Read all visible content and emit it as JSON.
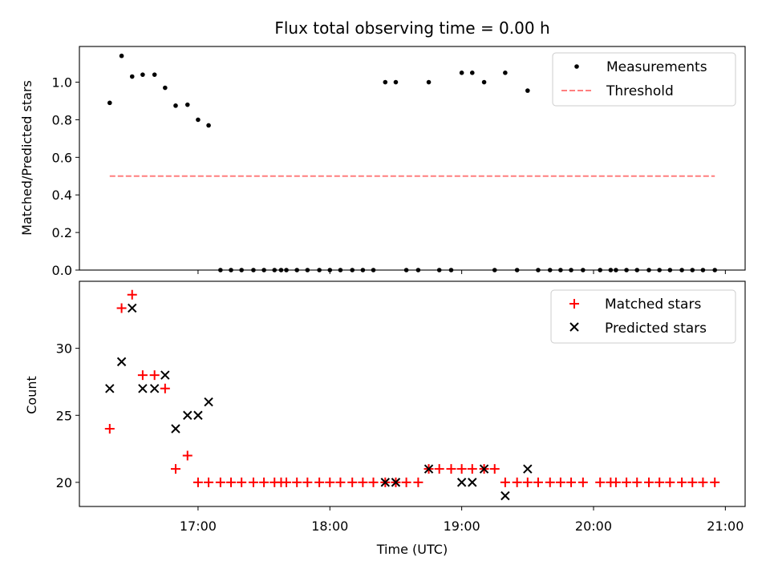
{
  "chart_data": [
    {
      "type": "scatter",
      "title": "Flux total observing time = 0.00 h",
      "xlabel": "",
      "ylabel": "Matched/Predicted stars",
      "ylim": [
        0,
        1.19
      ],
      "xlim_hours": [
        16.1,
        21.15
      ],
      "yticks": [
        {
          "v": 0.0,
          "label": "0.0"
        },
        {
          "v": 0.2,
          "label": "0.2"
        },
        {
          "v": 0.4,
          "label": "0.4"
        },
        {
          "v": 0.6,
          "label": "0.6"
        },
        {
          "v": 0.8,
          "label": "0.8"
        },
        {
          "v": 1.0,
          "label": "1.0"
        }
      ],
      "legend": [
        {
          "label": "Measurements",
          "color": "#000000",
          "marker": "dot"
        },
        {
          "label": "Threshold",
          "color": "#ff7f7f",
          "marker": "dash"
        }
      ],
      "legend_position": "top-right",
      "threshold": {
        "value": 0.5,
        "x_start": 16.33,
        "x_end": 20.92,
        "color": "#ff7f7f"
      },
      "measurements": {
        "x": [
          16.33,
          16.42,
          16.5,
          16.58,
          16.67,
          16.75,
          16.83,
          16.92,
          17.0,
          17.08,
          17.17,
          17.25,
          17.33,
          17.42,
          17.5,
          17.58,
          17.63,
          17.67,
          17.75,
          17.83,
          17.92,
          18.0,
          18.08,
          18.17,
          18.25,
          18.33,
          18.42,
          18.5,
          18.58,
          18.67,
          18.75,
          18.83,
          18.92,
          19.0,
          19.08,
          19.17,
          19.25,
          19.33,
          19.42,
          19.5,
          19.58,
          19.67,
          19.75,
          19.83,
          19.92,
          20.05,
          20.13,
          20.17,
          20.25,
          20.33,
          20.42,
          20.5,
          20.58,
          20.67,
          20.75,
          20.83,
          20.92
        ],
        "y": [
          0.89,
          1.14,
          1.03,
          1.04,
          1.04,
          0.97,
          0.875,
          0.88,
          0.8,
          0.77,
          0,
          0,
          0,
          0,
          0,
          0,
          0,
          0,
          0,
          0,
          0,
          0,
          0,
          0,
          0,
          0,
          1.0,
          1.0,
          0,
          0,
          1.0,
          0,
          0,
          1.05,
          1.05,
          1.0,
          0,
          1.05,
          0,
          0.955,
          0,
          0,
          0,
          0,
          0,
          0,
          0,
          0,
          0,
          0,
          0,
          0,
          0,
          0,
          0,
          0,
          0
        ]
      }
    },
    {
      "type": "scatter",
      "title": "",
      "xlabel": "Time (UTC)",
      "ylabel": "Count",
      "ylim": [
        18.2,
        35.0
      ],
      "xlim_hours": [
        16.1,
        21.15
      ],
      "yticks": [
        {
          "v": 20,
          "label": "20"
        },
        {
          "v": 25,
          "label": "25"
        },
        {
          "v": 30,
          "label": "30"
        }
      ],
      "xticks": [
        {
          "v": 17,
          "label": "17:00"
        },
        {
          "v": 18,
          "label": "18:00"
        },
        {
          "v": 19,
          "label": "19:00"
        },
        {
          "v": 20,
          "label": "20:00"
        },
        {
          "v": 21,
          "label": "21:00"
        }
      ],
      "legend": [
        {
          "label": "Matched stars",
          "color": "#ff0000",
          "marker": "plus"
        },
        {
          "label": "Predicted stars",
          "color": "#000000",
          "marker": "x"
        }
      ],
      "legend_position": "top-right",
      "series": [
        {
          "name": "Matched stars",
          "color": "#ff0000",
          "marker": "plus",
          "x": [
            16.33,
            16.42,
            16.5,
            16.58,
            16.67,
            16.75,
            16.83,
            16.92,
            17.0,
            17.08,
            17.17,
            17.25,
            17.33,
            17.42,
            17.5,
            17.58,
            17.63,
            17.67,
            17.75,
            17.83,
            17.92,
            18.0,
            18.08,
            18.17,
            18.25,
            18.33,
            18.42,
            18.5,
            18.58,
            18.67,
            18.75,
            18.83,
            18.92,
            19.0,
            19.08,
            19.17,
            19.25,
            19.33,
            19.42,
            19.5,
            19.58,
            19.67,
            19.75,
            19.83,
            19.92,
            20.05,
            20.13,
            20.17,
            20.25,
            20.33,
            20.42,
            20.5,
            20.58,
            20.67,
            20.75,
            20.83,
            20.92
          ],
          "y": [
            24,
            33,
            34,
            28,
            28,
            27,
            21,
            22,
            20,
            20,
            20,
            20,
            20,
            20,
            20,
            20,
            20,
            20,
            20,
            20,
            20,
            20,
            20,
            20,
            20,
            20,
            20,
            20,
            20,
            20,
            21,
            21,
            21,
            21,
            21,
            21,
            21,
            20,
            20,
            20,
            20,
            20,
            20,
            20,
            20,
            20,
            20,
            20,
            20,
            20,
            20,
            20,
            20,
            20,
            20,
            20,
            20
          ]
        },
        {
          "name": "Predicted stars",
          "color": "#000000",
          "marker": "x",
          "x": [
            16.33,
            16.42,
            16.5,
            16.58,
            16.67,
            16.75,
            16.83,
            16.92,
            17.0,
            17.08,
            18.42,
            18.5,
            18.75,
            19.0,
            19.08,
            19.17,
            19.33,
            19.5
          ],
          "y": [
            27,
            29,
            33,
            27,
            27,
            28,
            24,
            25,
            25,
            26,
            20,
            20,
            21,
            20,
            20,
            21,
            19,
            21
          ]
        }
      ]
    }
  ]
}
